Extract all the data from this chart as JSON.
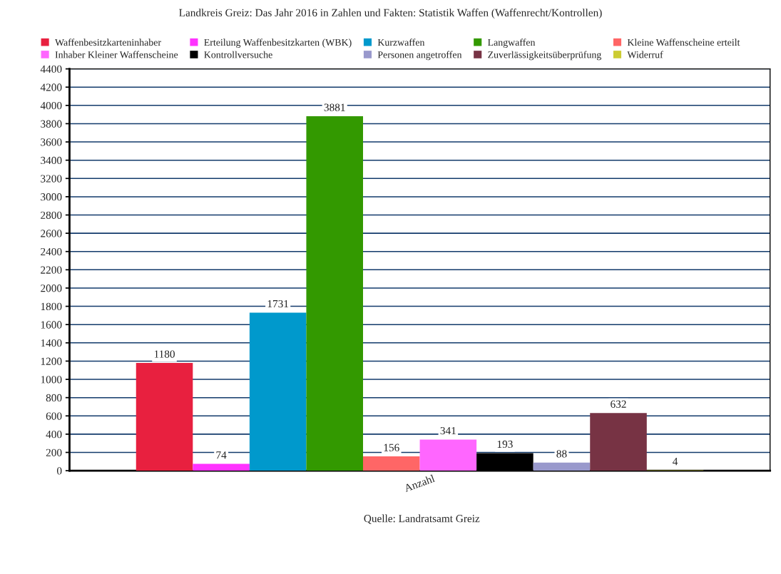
{
  "chart_data": {
    "type": "bar",
    "title": "Landkreis Greiz: Das Jahr 2016 in Zahlen und Fakten: Statistik Waffen (Waffenrecht/Kontrollen)",
    "categories": [
      "Anzahl"
    ],
    "series": [
      {
        "name": "Waffenbesitzkarteninhaber",
        "color": "#e8203f",
        "values": [
          1180
        ]
      },
      {
        "name": "Erteilung Waffenbesitzkarten (WBK)",
        "color": "#ff33ff",
        "values": [
          74
        ]
      },
      {
        "name": "Kurzwaffen",
        "color": "#0099cc",
        "values": [
          1731
        ]
      },
      {
        "name": "Langwaffen",
        "color": "#339900",
        "values": [
          3881
        ]
      },
      {
        "name": "Kleine Waffenscheine erteilt",
        "color": "#ff6666",
        "values": [
          156
        ]
      },
      {
        "name": "Inhaber Kleiner Waffenscheine",
        "color": "#ff66ff",
        "values": [
          341
        ]
      },
      {
        "name": "Kontrollversuche",
        "color": "#000000",
        "values": [
          193
        ]
      },
      {
        "name": "Personen angetroffen",
        "color": "#9999cc",
        "values": [
          88
        ]
      },
      {
        "name": "Zuverlässigkeitsüberprüfung",
        "color": "#773344",
        "values": [
          632
        ]
      },
      {
        "name": "Widerruf",
        "color": "#cccc33",
        "values": [
          4
        ]
      }
    ],
    "ylim": [
      0,
      4400
    ],
    "yticks": [
      0,
      200,
      400,
      600,
      800,
      1000,
      1200,
      1400,
      1600,
      1800,
      2000,
      2200,
      2400,
      2600,
      2800,
      3000,
      3200,
      3400,
      3600,
      3800,
      4000,
      4200,
      4400
    ],
    "grid": "y",
    "legend": "top",
    "data_labels": true,
    "annotations": [
      "Quelle: Landratsamt Greiz"
    ]
  }
}
